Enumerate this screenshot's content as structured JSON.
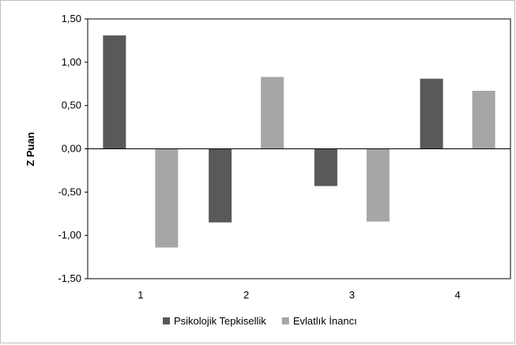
{
  "chart_data": {
    "type": "bar",
    "categories": [
      "1",
      "2",
      "3",
      "4"
    ],
    "series": [
      {
        "name": "Psikolojik Tepkisellik",
        "color": "#595959",
        "values": [
          1.31,
          -0.85,
          -0.43,
          0.81
        ]
      },
      {
        "name": "Evlatlık İnancı",
        "color": "#a6a6a6",
        "values": [
          -1.14,
          0.83,
          -0.84,
          0.67
        ]
      }
    ],
    "ylabel": "Z Puan",
    "ylim": [
      -1.5,
      1.5
    ],
    "yticks": [
      "1,50",
      "1,00",
      "0,50",
      "0,00",
      "-0,50",
      "-1,00",
      "-1,50"
    ],
    "ytick_values": [
      1.5,
      1.0,
      0.5,
      0.0,
      -0.5,
      -1.0,
      -1.5
    ],
    "grid": false,
    "legend_position": "bottom"
  }
}
